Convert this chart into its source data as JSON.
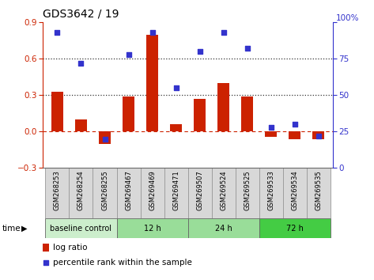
{
  "title": "GDS3642 / 19",
  "samples": [
    "GSM268253",
    "GSM268254",
    "GSM268255",
    "GSM269467",
    "GSM269469",
    "GSM269471",
    "GSM269507",
    "GSM269524",
    "GSM269525",
    "GSM269533",
    "GSM269534",
    "GSM269535"
  ],
  "log_ratio": [
    0.33,
    0.1,
    -0.1,
    0.29,
    0.8,
    0.06,
    0.27,
    0.4,
    0.29,
    -0.04,
    -0.06,
    -0.06
  ],
  "percentile_rank": [
    93,
    72,
    20,
    78,
    93,
    55,
    80,
    93,
    82,
    28,
    30,
    22
  ],
  "bar_color": "#cc2200",
  "dot_color": "#3333cc",
  "ylim_left": [
    -0.3,
    0.9
  ],
  "ylim_right": [
    0,
    100
  ],
  "yticks_left": [
    -0.3,
    0.0,
    0.3,
    0.6,
    0.9
  ],
  "yticks_right": [
    0,
    25,
    50,
    75,
    100
  ],
  "hlines": [
    0.3,
    0.6
  ],
  "zero_line_color": "#cc2200",
  "dotted_line_color": "#333333",
  "groups": [
    {
      "label": "baseline control",
      "start": 0,
      "end": 3,
      "color": "#cceecc"
    },
    {
      "label": "12 h",
      "start": 3,
      "end": 6,
      "color": "#99dd99"
    },
    {
      "label": "24 h",
      "start": 6,
      "end": 9,
      "color": "#99dd99"
    },
    {
      "label": "72 h",
      "start": 9,
      "end": 12,
      "color": "#44cc44"
    }
  ],
  "time_label": "time",
  "legend_bar_label": "log ratio",
  "legend_dot_label": "percentile rank within the sample",
  "bg_color": "#ffffff",
  "cell_color": "#d8d8d8",
  "cell_border": "#999999",
  "title_fontsize": 10,
  "bar_width": 0.5
}
